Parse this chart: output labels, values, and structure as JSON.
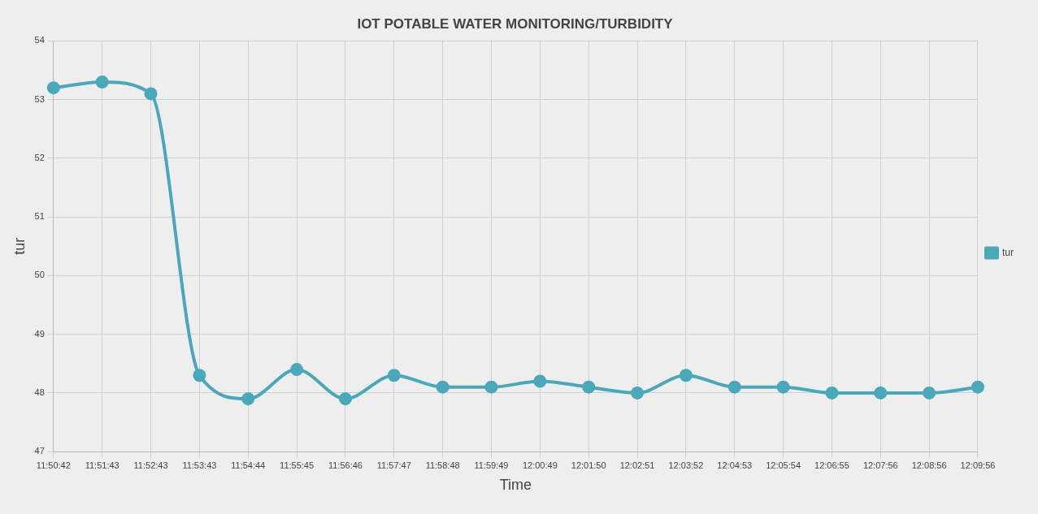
{
  "chart_data": {
    "type": "line",
    "title": "IOT POTABLE WATER MONITORING/TURBIDITY",
    "xlabel": "Time",
    "ylabel": "tur",
    "categories": [
      "11:50:42",
      "11:51:43",
      "11:52:43",
      "11:53:43",
      "11:54:44",
      "11:55:45",
      "11:56:46",
      "11:57:47",
      "11:58:48",
      "11:59:49",
      "12:00:49",
      "12:01:50",
      "12:02:51",
      "12:03:52",
      "12:04:53",
      "12:05:54",
      "12:06:55",
      "12:07:56",
      "12:08:56",
      "12:09:56"
    ],
    "series": [
      {
        "name": "tur",
        "color": "#4aa8bb",
        "values": [
          53.2,
          53.3,
          53.1,
          48.3,
          47.9,
          48.4,
          47.9,
          48.3,
          48.1,
          48.1,
          48.2,
          48.1,
          48.0,
          48.3,
          48.1,
          48.1,
          48.0,
          48.0,
          48.0,
          48.1
        ]
      }
    ],
    "ylim": [
      47,
      54
    ],
    "yticks": [
      47,
      48,
      49,
      50,
      51,
      52,
      53,
      54
    ],
    "grid": true,
    "legend": "right",
    "marker": "circle",
    "line_style": "solid"
  }
}
